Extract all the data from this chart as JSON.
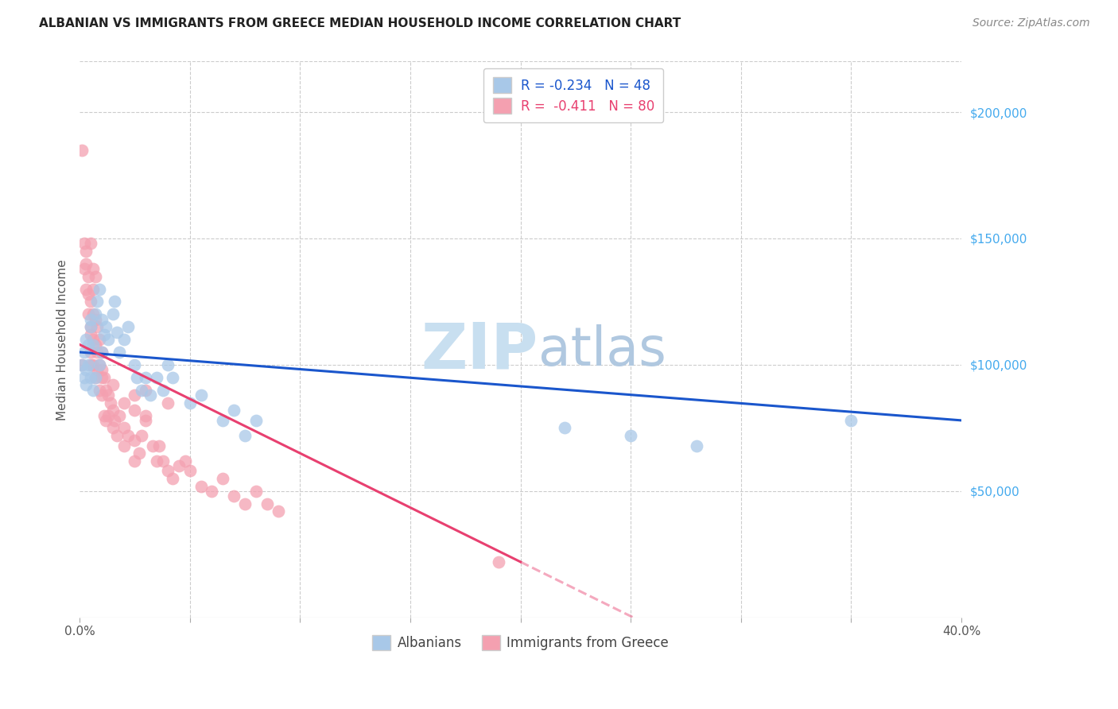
{
  "title": "ALBANIAN VS IMMIGRANTS FROM GREECE MEDIAN HOUSEHOLD INCOME CORRELATION CHART",
  "source": "Source: ZipAtlas.com",
  "ylabel": "Median Household Income",
  "yticks": [
    0,
    50000,
    100000,
    150000,
    200000
  ],
  "ytick_labels": [
    "",
    "$50,000",
    "$100,000",
    "$150,000",
    "$200,000"
  ],
  "xlim": [
    0.0,
    0.4
  ],
  "ylim": [
    0,
    220000
  ],
  "legend1_r": "-0.234",
  "legend1_n": "48",
  "legend2_r": "-0.411",
  "legend2_n": "80",
  "legend1_color": "#a8c8e8",
  "legend2_color": "#f4a0b0",
  "albanian_color": "#a8c8e8",
  "greece_color": "#f4a0b0",
  "trendline_blue_color": "#1a56cc",
  "trendline_pink_color": "#e84070",
  "albanian_x": [
    0.001,
    0.002,
    0.002,
    0.003,
    0.003,
    0.003,
    0.004,
    0.004,
    0.005,
    0.005,
    0.005,
    0.006,
    0.006,
    0.007,
    0.007,
    0.008,
    0.009,
    0.009,
    0.01,
    0.01,
    0.011,
    0.012,
    0.013,
    0.015,
    0.016,
    0.017,
    0.018,
    0.02,
    0.022,
    0.025,
    0.026,
    0.028,
    0.03,
    0.032,
    0.035,
    0.038,
    0.04,
    0.042,
    0.05,
    0.055,
    0.065,
    0.07,
    0.075,
    0.08,
    0.22,
    0.25,
    0.28,
    0.35
  ],
  "albanian_y": [
    100000,
    105000,
    95000,
    110000,
    98000,
    92000,
    108000,
    100000,
    115000,
    118000,
    95000,
    90000,
    108000,
    120000,
    95000,
    125000,
    130000,
    100000,
    118000,
    105000,
    112000,
    115000,
    110000,
    120000,
    125000,
    113000,
    105000,
    110000,
    115000,
    100000,
    95000,
    90000,
    95000,
    88000,
    95000,
    90000,
    100000,
    95000,
    85000,
    88000,
    78000,
    82000,
    72000,
    78000,
    75000,
    72000,
    68000,
    78000
  ],
  "greece_x": [
    0.001,
    0.001,
    0.002,
    0.002,
    0.003,
    0.003,
    0.003,
    0.004,
    0.004,
    0.004,
    0.005,
    0.005,
    0.005,
    0.005,
    0.005,
    0.006,
    0.006,
    0.006,
    0.006,
    0.007,
    0.007,
    0.007,
    0.008,
    0.008,
    0.008,
    0.009,
    0.009,
    0.009,
    0.01,
    0.01,
    0.01,
    0.011,
    0.011,
    0.012,
    0.012,
    0.013,
    0.013,
    0.014,
    0.015,
    0.015,
    0.016,
    0.017,
    0.018,
    0.02,
    0.02,
    0.022,
    0.025,
    0.025,
    0.027,
    0.028,
    0.03,
    0.033,
    0.035,
    0.036,
    0.038,
    0.04,
    0.042,
    0.045,
    0.048,
    0.05,
    0.055,
    0.06,
    0.065,
    0.07,
    0.075,
    0.08,
    0.085,
    0.09,
    0.01,
    0.015,
    0.025,
    0.03,
    0.04,
    0.005,
    0.006,
    0.007,
    0.19,
    0.02,
    0.03,
    0.025
  ],
  "greece_y": [
    185000,
    100000,
    148000,
    138000,
    145000,
    140000,
    130000,
    135000,
    128000,
    120000,
    125000,
    115000,
    112000,
    105000,
    100000,
    130000,
    120000,
    110000,
    100000,
    118000,
    108000,
    95000,
    115000,
    105000,
    98000,
    110000,
    100000,
    90000,
    105000,
    98000,
    88000,
    95000,
    80000,
    90000,
    78000,
    88000,
    80000,
    85000,
    82000,
    75000,
    78000,
    72000,
    80000,
    75000,
    68000,
    72000,
    70000,
    62000,
    65000,
    72000,
    78000,
    68000,
    62000,
    68000,
    62000,
    58000,
    55000,
    60000,
    62000,
    58000,
    52000,
    50000,
    55000,
    48000,
    45000,
    50000,
    45000,
    42000,
    95000,
    92000,
    88000,
    90000,
    85000,
    148000,
    138000,
    135000,
    22000,
    85000,
    80000,
    82000
  ],
  "watermark_zip": "ZIP",
  "watermark_atlas": "atlas",
  "watermark_color_zip": "#c8dff0",
  "watermark_color_atlas": "#b0c8e0"
}
